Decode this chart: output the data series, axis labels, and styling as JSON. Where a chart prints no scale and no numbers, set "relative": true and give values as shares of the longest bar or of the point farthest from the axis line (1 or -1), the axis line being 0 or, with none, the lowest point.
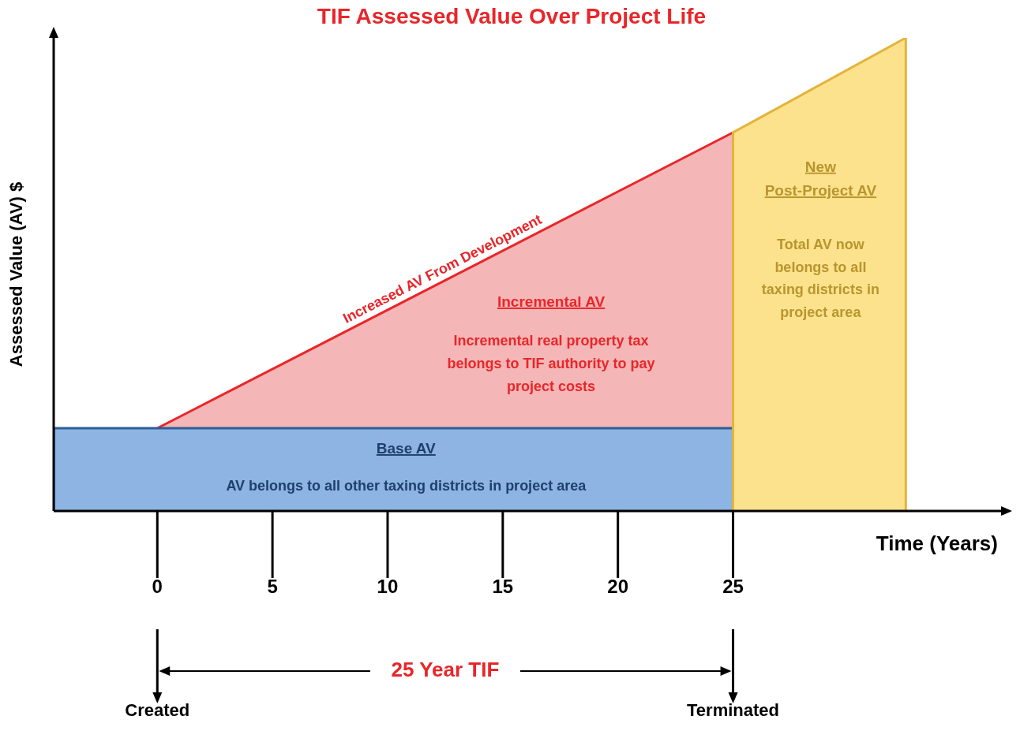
{
  "chart_data": {
    "type": "area",
    "title": "TIF Assessed Value Over Project Life",
    "xlabel": "Time (Years)",
    "ylabel": "Assessed Value (AV) $",
    "relative": true,
    "xlim": [
      -4.5,
      36.5
    ],
    "xticks": [
      0,
      5,
      10,
      15,
      20,
      25
    ],
    "series": [
      {
        "name": "Incremental AV",
        "color": "#f4b6b6",
        "x": [
          0,
          25
        ],
        "values": [
          0.175,
          0.8
        ]
      },
      {
        "name": "Base AV",
        "color": "#8db4e2",
        "x": [
          -4.5,
          -4.5,
          25,
          25
        ],
        "values": [
          0,
          0.175,
          0.175,
          0
        ]
      },
      {
        "name": "New Post-Project AV",
        "color": "#fde28e",
        "x": [
          25,
          25,
          32.5,
          32.5
        ],
        "values": [
          0,
          0.8,
          1,
          0
        ]
      }
    ],
    "annotations": [
      "Increased AV From Development",
      "Incremental real property tax belongs to TIF authority to pay project costs",
      "AV belongs to all other taxing districts in project area",
      "Total AV now belongs to all taxing districts in project area",
      "25 Year TIF",
      "Created",
      "Terminated"
    ]
  }
}
